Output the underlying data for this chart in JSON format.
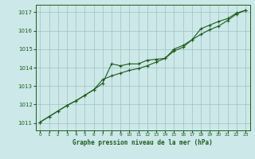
{
  "title": "Graphe pression niveau de la mer (hPa)",
  "background_color": "#cce8e8",
  "plot_bg_color": "#cce8e8",
  "grid_color": "#a0c0c0",
  "line_color": "#1e5c1e",
  "marker_color": "#1e5c1e",
  "xlim": [
    -0.5,
    23.5
  ],
  "ylim": [
    1010.6,
    1017.4
  ],
  "yticks": [
    1011,
    1012,
    1013,
    1014,
    1015,
    1016,
    1017
  ],
  "xticks": [
    0,
    1,
    2,
    3,
    4,
    5,
    6,
    7,
    8,
    9,
    10,
    11,
    12,
    13,
    14,
    15,
    16,
    17,
    18,
    19,
    20,
    21,
    22,
    23
  ],
  "series1_x": [
    0,
    1,
    2,
    3,
    4,
    5,
    6,
    7,
    8,
    9,
    10,
    11,
    12,
    13,
    14,
    15,
    16,
    17,
    18,
    19,
    20,
    21,
    22,
    23
  ],
  "series1_y": [
    1011.05,
    1011.35,
    1011.65,
    1011.95,
    1012.2,
    1012.5,
    1012.8,
    1013.15,
    1014.2,
    1014.1,
    1014.2,
    1014.2,
    1014.4,
    1014.45,
    1014.5,
    1015.0,
    1015.2,
    1015.5,
    1016.1,
    1016.3,
    1016.5,
    1016.65,
    1016.95,
    1017.1
  ],
  "series2_x": [
    0,
    1,
    2,
    3,
    4,
    5,
    6,
    7,
    8,
    9,
    10,
    11,
    12,
    13,
    14,
    15,
    16,
    17,
    18,
    19,
    20,
    21,
    22,
    23
  ],
  "series2_y": [
    1011.05,
    1011.35,
    1011.65,
    1011.95,
    1012.2,
    1012.5,
    1012.8,
    1013.35,
    1013.55,
    1013.7,
    1013.85,
    1013.95,
    1014.1,
    1014.3,
    1014.5,
    1014.9,
    1015.1,
    1015.5,
    1015.8,
    1016.05,
    1016.25,
    1016.55,
    1016.9,
    1017.1
  ]
}
